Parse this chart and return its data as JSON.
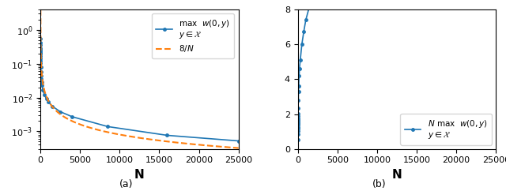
{
  "N_values": [
    1,
    2,
    3,
    4,
    5,
    6,
    7,
    8,
    10,
    12,
    15,
    20,
    30,
    50,
    75,
    100,
    150,
    200,
    300,
    500,
    750,
    1000,
    1500,
    2500,
    4000,
    8500,
    16000,
    25000
  ],
  "max_w_values": [
    0.55,
    0.42,
    0.35,
    0.29,
    0.255,
    0.23,
    0.21,
    0.195,
    0.165,
    0.145,
    0.125,
    0.102,
    0.078,
    0.056,
    0.044,
    0.036,
    0.028,
    0.023,
    0.017,
    0.012,
    0.009,
    0.0074,
    0.0055,
    0.0038,
    0.0027,
    0.00138,
    0.00076,
    0.00052
  ],
  "blue_color": "#1f77b4",
  "orange_color": "#ff7f0e",
  "xlabel": "N",
  "subplot_a_label": "(a)",
  "subplot_b_label": "(b)",
  "ylim_b": [
    0,
    8
  ],
  "xlim": [
    0,
    25000
  ],
  "ylim_a_min": 0.0003,
  "ylim_a_max": 4.0
}
